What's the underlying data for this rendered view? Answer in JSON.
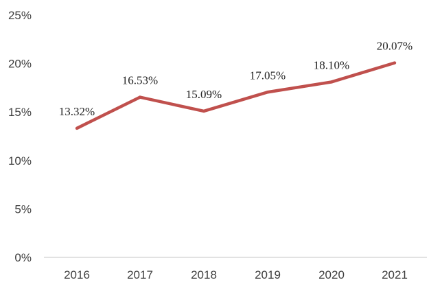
{
  "chart_data": {
    "type": "line",
    "title": "",
    "xlabel": "",
    "ylabel": "",
    "categories": [
      "2016",
      "2017",
      "2018",
      "2019",
      "2020",
      "2021"
    ],
    "series": [
      {
        "name": "rate",
        "values": [
          13.32,
          16.53,
          15.09,
          17.05,
          18.1,
          20.07
        ],
        "labels": [
          "13.32%",
          "16.53%",
          "15.09%",
          "17.05%",
          "18.10%",
          "20.07%"
        ]
      }
    ],
    "ylim": [
      0,
      25
    ],
    "yticks": [
      0,
      5,
      10,
      15,
      20,
      25
    ],
    "ytick_labels": [
      "0%",
      "5%",
      "10%",
      "15%",
      "20%",
      "25%"
    ],
    "grid": false,
    "legend": "none",
    "line_color": "#C0504D"
  }
}
